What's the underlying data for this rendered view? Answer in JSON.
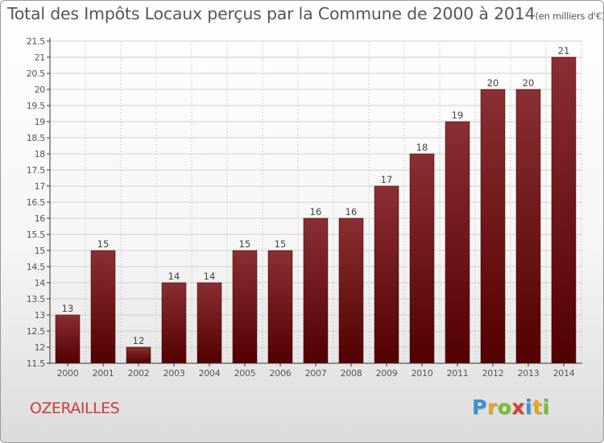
{
  "colors": {
    "bar_top": "#8a2f33",
    "bar_bottom": "#520000",
    "axis": "#333333",
    "grid": "#d0d0d0",
    "text": "#555555",
    "commune": "#cc3b3b"
  },
  "chart_data": {
    "type": "bar",
    "title": "Total des Impôts Locaux perçus par la Commune de 2000 à 2014",
    "unit": "(en milliers d'€)",
    "xlabel": "",
    "ylabel": "",
    "categories": [
      "2000",
      "2001",
      "2002",
      "2003",
      "2004",
      "2005",
      "2006",
      "2007",
      "2008",
      "2009",
      "2010",
      "2011",
      "2012",
      "2013",
      "2014"
    ],
    "values": [
      13,
      15,
      12,
      14,
      14,
      15,
      15,
      16,
      16,
      17,
      18,
      19,
      20,
      20,
      21
    ],
    "data_labels": [
      "13",
      "15",
      "12",
      "14",
      "14",
      "15",
      "15",
      "16",
      "16",
      "17",
      "18",
      "19",
      "20",
      "20",
      "21"
    ],
    "ylim": [
      11.5,
      21.5
    ],
    "yticks": [
      11.5,
      12,
      12.5,
      13,
      13.5,
      14,
      14.5,
      15,
      15.5,
      16,
      16.5,
      17,
      17.5,
      18,
      18.5,
      19,
      19.5,
      20,
      20.5,
      21,
      21.5
    ],
    "ytick_labels": [
      "11.5",
      "12",
      "12.5",
      "13",
      "13.5",
      "14",
      "14.5",
      "15",
      "15.5",
      "16",
      "16.5",
      "17",
      "17.5",
      "18",
      "18.5",
      "19",
      "19.5",
      "20",
      "20.5",
      "21",
      "21.5"
    ],
    "grid": true,
    "legend": "none"
  },
  "footer": {
    "commune": "OZERAILLES",
    "brand_letters": [
      {
        "char": "P",
        "color": "#3a8fd6"
      },
      {
        "char": "r",
        "color": "#e8a320"
      },
      {
        "char": "o",
        "color": "#7cba2f"
      },
      {
        "char": "x",
        "color": "#e03a2e"
      },
      {
        "char": "i",
        "color": "#3a8fd6"
      },
      {
        "char": "t",
        "color": "#e8a320"
      },
      {
        "char": "i",
        "color": "#7cba2f"
      }
    ]
  }
}
